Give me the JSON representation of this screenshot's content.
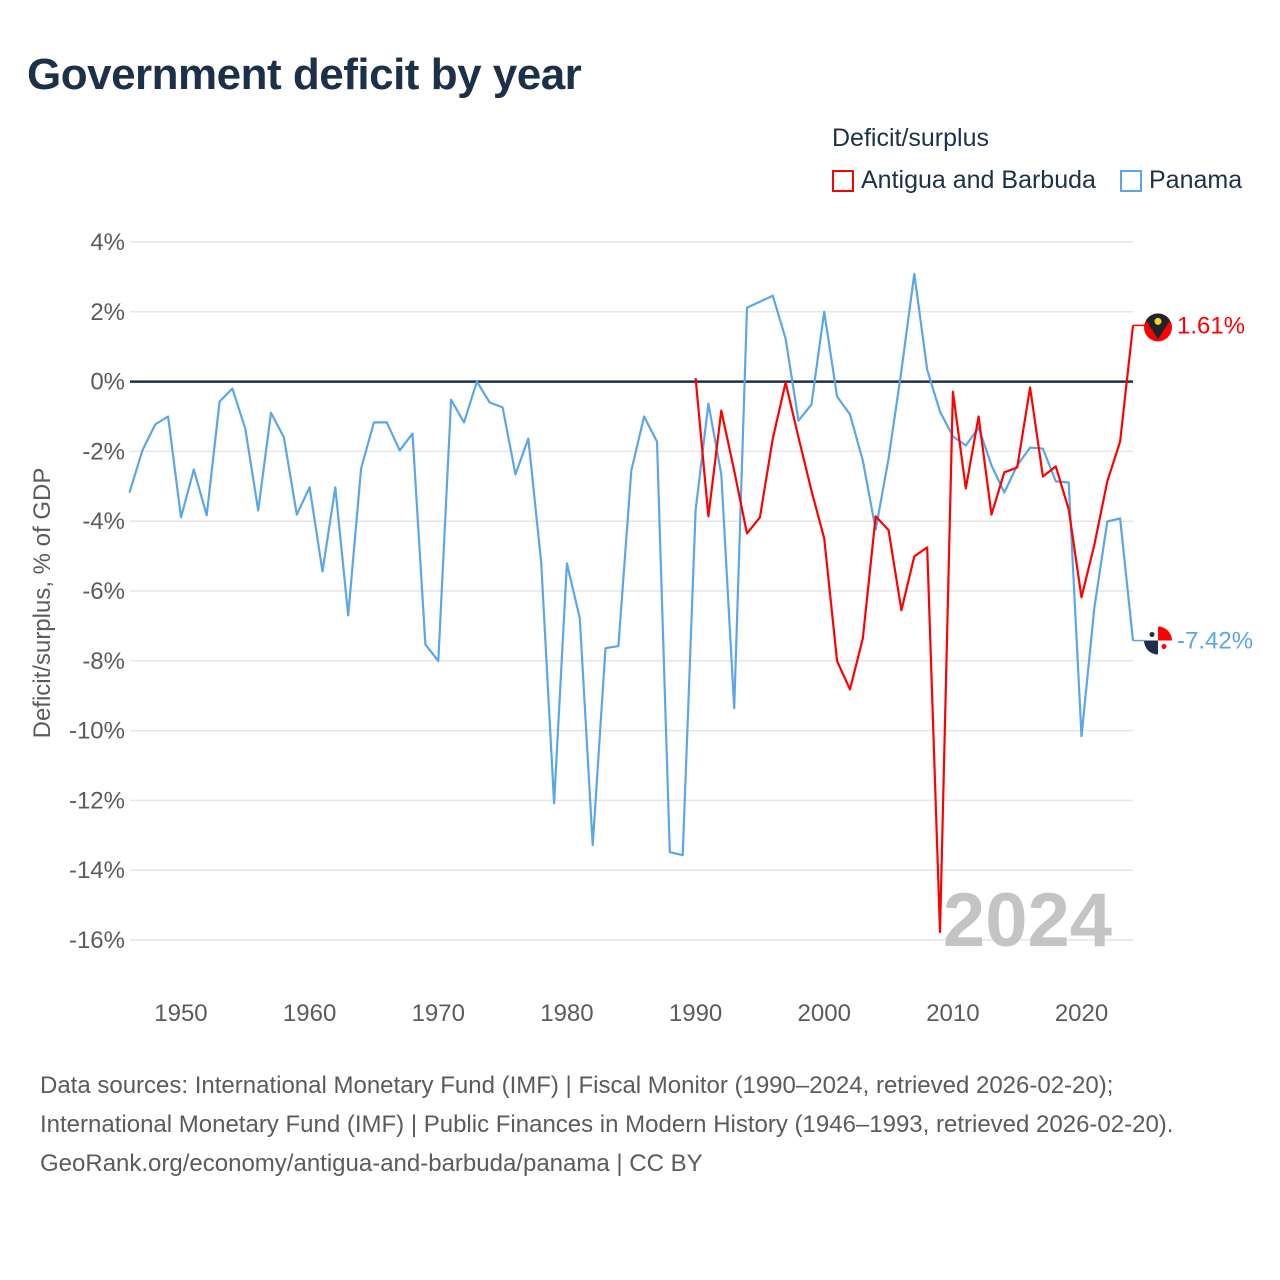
{
  "title": "Government deficit by year",
  "legend": {
    "title": "Deficit/surplus",
    "items": [
      {
        "label": "Antigua and Barbuda",
        "color": "#ff0000"
      },
      {
        "label": "Panama",
        "color": "#5ba6e8"
      }
    ]
  },
  "chart_data": {
    "type": "line",
    "title": "Government deficit by year",
    "xlabel": "",
    "ylabel": "Deficit/surplus, % of GDP",
    "xlim": [
      1946,
      2024
    ],
    "ylim": [
      -16,
      4
    ],
    "x_ticks": [
      1950,
      1960,
      1970,
      1980,
      1990,
      2000,
      2010,
      2020
    ],
    "x_tick_labels": [
      "1950",
      "1960",
      "1970",
      "1980",
      "1990",
      "2000",
      "2010",
      "2020"
    ],
    "y_ticks": [
      4,
      2,
      0,
      -2,
      -4,
      -6,
      -8,
      -10,
      -12,
      -14,
      -16
    ],
    "y_tick_labels": [
      "4%",
      "2%",
      "0%",
      "-2%",
      "-4%",
      "-6%",
      "-8%",
      "-10%",
      "-12%",
      "-14%",
      "-16%"
    ],
    "grid": true,
    "legend_position": "top-right",
    "year_watermark": "2024",
    "series": [
      {
        "name": "Antigua and Barbuda",
        "color": "#ff0000",
        "start_year": 1990,
        "end_label": "1.61%",
        "values": [
          0.1,
          -3.86,
          -0.83,
          -2.55,
          -4.35,
          -3.89,
          -1.63,
          -0.03,
          -1.6,
          -3.12,
          -4.49,
          -8.01,
          -8.82,
          -7.36,
          -3.86,
          -4.26,
          -6.55,
          -5.01,
          -4.75,
          -15.77,
          -0.29,
          -3.06,
          -1.0,
          -3.81,
          -2.6,
          -2.46,
          -0.17,
          -2.72,
          -2.43,
          -3.66,
          -6.18,
          -4.67,
          -2.86,
          -1.72,
          1.61
        ]
      },
      {
        "name": "Panama",
        "color": "#5ba6e8",
        "start_year": 1946,
        "end_label": "-7.42%",
        "values": [
          -3.18,
          -1.97,
          -1.23,
          -1.0,
          -3.89,
          -2.52,
          -3.83,
          -0.57,
          -0.2,
          -1.35,
          -3.69,
          -0.89,
          -1.6,
          -3.81,
          -3.03,
          -5.44,
          -3.03,
          -6.7,
          -2.49,
          -1.17,
          -1.17,
          -1.97,
          -1.49,
          -7.53,
          -8.01,
          -0.52,
          -1.17,
          0.0,
          -0.6,
          -0.74,
          -2.66,
          -1.63,
          -5.18,
          -12.08,
          -5.21,
          -6.78,
          -13.28,
          -7.64,
          -7.58,
          -2.55,
          -1.0,
          -1.72,
          -13.48,
          -13.57,
          -3.69,
          -0.63,
          -2.66,
          -9.36,
          2.12,
          2.29,
          2.46,
          1.23,
          -1.12,
          -0.66,
          2.0,
          -0.43,
          -0.94,
          -2.26,
          -4.24,
          -2.2,
          0.31,
          3.09,
          0.34,
          -0.86,
          -1.57,
          -1.83,
          -1.32,
          -2.4,
          -3.18,
          -2.4,
          -1.89,
          -1.92,
          -2.86,
          -2.89,
          -10.16,
          -6.47,
          -4.01,
          -3.92,
          -7.42
        ]
      }
    ]
  },
  "sources": {
    "line1": "Data sources: International Monetary Fund (IMF) | Fiscal Monitor (1990–2024, retrieved 2026-02-20); International Monetary Fund (IMF) | Public Finances in Modern History (1946–1993, retrieved 2026-02-20).",
    "line2": "GeoRank.org/economy/antigua-and-barbuda/panama | CC BY"
  }
}
